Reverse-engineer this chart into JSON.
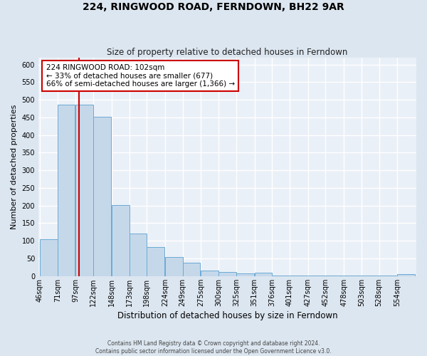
{
  "title": "224, RINGWOOD ROAD, FERNDOWN, BH22 9AR",
  "subtitle": "Size of property relative to detached houses in Ferndown",
  "xlabel": "Distribution of detached houses by size in Ferndown",
  "ylabel": "Number of detached properties",
  "footer_line1": "Contains HM Land Registry data © Crown copyright and database right 2024.",
  "footer_line2": "Contains public sector information licensed under the Open Government Licence v3.0.",
  "bar_labels": [
    "46sqm",
    "71sqm",
    "97sqm",
    "122sqm",
    "148sqm",
    "173sqm",
    "198sqm",
    "224sqm",
    "249sqm",
    "275sqm",
    "300sqm",
    "325sqm",
    "351sqm",
    "376sqm",
    "401sqm",
    "427sqm",
    "452sqm",
    "478sqm",
    "503sqm",
    "528sqm",
    "554sqm"
  ],
  "bar_values": [
    105,
    487,
    487,
    452,
    202,
    120,
    82,
    55,
    38,
    15,
    12,
    8,
    10,
    2,
    2,
    2,
    2,
    2,
    2,
    2,
    5
  ],
  "bar_color": "#c5d8ea",
  "bar_edge_color": "#6aaad4",
  "property_line_x": 97,
  "property_line_label": "224 RINGWOOD ROAD: 102sqm",
  "annotation_line1": "← 33% of detached houses are smaller (677)",
  "annotation_line2": "66% of semi-detached houses are larger (1,366) →",
  "annotation_box_color": "#ffffff",
  "annotation_box_edge": "#cc0000",
  "line_color": "#cc0000",
  "ylim": [
    0,
    620
  ],
  "yticks": [
    0,
    50,
    100,
    150,
    200,
    250,
    300,
    350,
    400,
    450,
    500,
    550,
    600
  ],
  "bg_color": "#dce6f0",
  "plot_bg_color": "#eaf0f7",
  "bin_width": 25,
  "left_edges": [
    46,
    71,
    97,
    122,
    148,
    173,
    198,
    224,
    249,
    275,
    300,
    325,
    351,
    376,
    401,
    427,
    452,
    478,
    503,
    528,
    554
  ]
}
